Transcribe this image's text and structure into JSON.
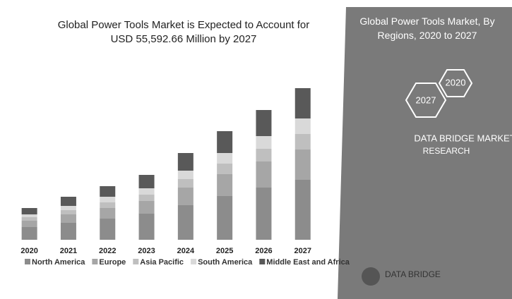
{
  "chart_data": {
    "type": "stacked_bar",
    "title": "Global Power Tools Market is Expected to Account for USD 55,592.66 Million by 2027",
    "categories": [
      "2020",
      "2021",
      "2022",
      "2023",
      "2024",
      "2025",
      "2026",
      "2027"
    ],
    "series": [
      {
        "name": "North America",
        "color": "#8c8c8c",
        "values": [
          18,
          24,
          30,
          37,
          49,
          62,
          74,
          85
        ]
      },
      {
        "name": "Europe",
        "color": "#a6a6a6",
        "values": [
          9,
          12,
          15,
          18,
          25,
          31,
          37,
          43
        ]
      },
      {
        "name": "Asia Pacific",
        "color": "#bfbfbf",
        "values": [
          5,
          6,
          8,
          9,
          12,
          15,
          18,
          22
        ]
      },
      {
        "name": "South America",
        "color": "#d9d9d9",
        "values": [
          4,
          6,
          8,
          9,
          12,
          15,
          18,
          22
        ]
      },
      {
        "name": "Middle East and Africa",
        "color": "#595959",
        "values": [
          9,
          13,
          15,
          19,
          25,
          31,
          37,
          43
        ]
      }
    ],
    "legend": "bottom"
  },
  "panel": {
    "title": "Global Power Tools Market, By Regions, 2020 to 2027",
    "hex_left": "2027",
    "hex_right": "2020",
    "brand": "DATA BRIDGE MARKET",
    "brand_sub": "RESEARCH",
    "logo": "DATA BRIDGE"
  }
}
